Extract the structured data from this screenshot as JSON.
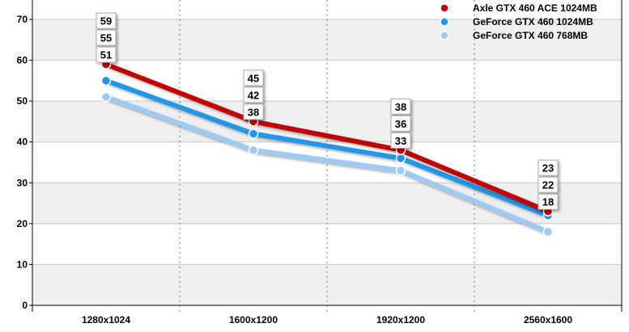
{
  "chart_data": {
    "type": "line",
    "title": "",
    "xlabel": "",
    "ylabel": "",
    "categories": [
      "1280x1024",
      "1600x1200",
      "1920x1200",
      "2560x1600"
    ],
    "ylim": [
      0,
      70
    ],
    "yticks": [
      0,
      10,
      20,
      30,
      40,
      50,
      60,
      70
    ],
    "grid": true,
    "legend_position": "top-right",
    "series": [
      {
        "name": "Axle GTX 460 ACE 1024MB",
        "color": "#c00000",
        "values": [
          59,
          45,
          38,
          23
        ]
      },
      {
        "name": "GeForce GTX 460 1024MB",
        "color": "#2196e8",
        "values": [
          55,
          42,
          36,
          22
        ]
      },
      {
        "name": "GeForce GTX 460 768MB",
        "color": "#9ccbf3",
        "values": [
          51,
          38,
          33,
          18
        ]
      }
    ]
  }
}
